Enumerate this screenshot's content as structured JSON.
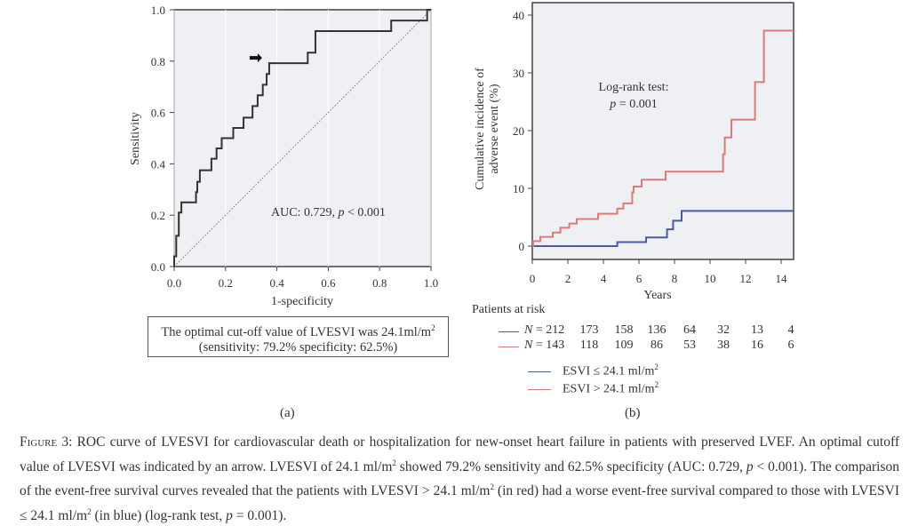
{
  "chart_data": [
    {
      "type": "line",
      "panel_label": "(a)",
      "xlabel": "1-specificity",
      "ylabel": "Sensitivity",
      "xlim": [
        0,
        1
      ],
      "ylim": [
        0,
        1
      ],
      "xticks": [
        "0.0",
        "0.2",
        "0.4",
        "0.6",
        "0.8",
        "1.0"
      ],
      "yticks": [
        "0.0",
        "0.2",
        "0.4",
        "0.6",
        "0.8",
        "1.0"
      ],
      "annotation": "AUC: 0.729, p < 0.001",
      "annotation_parts": {
        "auc": "AUC: 0.729, ",
        "p": "p",
        "rest": " < 0.001"
      },
      "arrow_point": {
        "x": 0.37,
        "y": 0.792
      },
      "reference_line": "diagonal dotted",
      "series": [
        {
          "style": "step",
          "color": "#333333",
          "x": [
            0,
            0,
            0.008,
            0.008,
            0.018,
            0.018,
            0.028,
            0.028,
            0.085,
            0.085,
            0.09,
            0.09,
            0.1,
            0.1,
            0.145,
            0.145,
            0.165,
            0.165,
            0.185,
            0.185,
            0.23,
            0.23,
            0.27,
            0.27,
            0.305,
            0.305,
            0.325,
            0.325,
            0.345,
            0.345,
            0.36,
            0.36,
            0.37,
            0.37,
            0.52,
            0.52,
            0.55,
            0.55,
            0.845,
            0.845,
            0.985,
            0.985,
            1
          ],
          "y": [
            0,
            0.04,
            0.04,
            0.12,
            0.12,
            0.21,
            0.21,
            0.25,
            0.25,
            0.29,
            0.29,
            0.33,
            0.33,
            0.375,
            0.375,
            0.42,
            0.42,
            0.46,
            0.46,
            0.5,
            0.5,
            0.54,
            0.54,
            0.58,
            0.58,
            0.625,
            0.625,
            0.667,
            0.667,
            0.708,
            0.708,
            0.75,
            0.75,
            0.792,
            0.792,
            0.833,
            0.833,
            0.917,
            0.917,
            0.958,
            0.958,
            1,
            1
          ]
        }
      ],
      "cutoff_box": {
        "line1": "The optimal cut-off value of LVESVI was 24.1ml/m",
        "line1_sup": "2",
        "line2": "(sensitivity: 79.2% specificity: 62.5%)"
      }
    },
    {
      "type": "line",
      "panel_label": "(b)",
      "xlabel": "Years",
      "ylabel_line1": "Cumulative incidence of",
      "ylabel_line2": "adverse event (%)",
      "xlim": [
        0,
        14.7
      ],
      "ylim": [
        -2.3,
        42
      ],
      "xticks": [
        "0",
        "2",
        "4",
        "6",
        "8",
        "10",
        "12",
        "14"
      ],
      "yticks": [
        "0",
        "10",
        "20",
        "30",
        "40"
      ],
      "annotation_line1": "Log-rank test:",
      "annotation_line2_p": "p",
      "annotation_line2_rest": " = 0.001",
      "series": [
        {
          "name": "ESVI ≤ 24.1 ml/m",
          "name_sup": "2",
          "color": "#4a5aa8",
          "x": [
            0,
            4.78,
            6.4,
            7.58,
            7.92,
            8.4,
            14.7
          ],
          "y": [
            0,
            0.7,
            1.5,
            2.9,
            4.4,
            6.1,
            6.1
          ]
        },
        {
          "name": "ESVI > 24.1 ml/m",
          "name_sup": "2",
          "color": "#e07a7a",
          "x": [
            0,
            0.05,
            0.45,
            1.15,
            1.58,
            2.08,
            2.5,
            3.7,
            4.78,
            5.12,
            5.62,
            5.7,
            6.15,
            7.5,
            10.73,
            10.83,
            11.2,
            12.53,
            13.03,
            14.7
          ],
          "y": [
            0,
            0.87,
            1.6,
            2.35,
            3.2,
            3.9,
            4.7,
            5.6,
            6.5,
            7.4,
            9.3,
            10.3,
            11.5,
            12.9,
            15.9,
            18.8,
            21.9,
            28.4,
            37.3,
            37.3
          ]
        }
      ],
      "risk_table": {
        "title": "Patients at risk",
        "rows": [
          {
            "color": "#4a5aa8",
            "n_label": "N",
            "first": " = 212",
            "values": [
              "173",
              "158",
              "136",
              "64",
              "32",
              "13",
              "4"
            ]
          },
          {
            "color": "#e07a7a",
            "n_label": "N",
            "first": " = 143",
            "values": [
              "118",
              "109",
              "86",
              "53",
              "38",
              "16",
              "6"
            ]
          }
        ]
      }
    }
  ],
  "caption": {
    "figure_label": "Figure 3:",
    "t1": " ROC curve of LVESVI for cardiovascular death or hospitalization for new-onset heart failure in patients with preserved LVEF. An optimal cutoff value of LVESVI was indicated by an arrow. LVESVI of 24.1 ml/m",
    "s1": "2",
    "t2": " showed 79.2% sensitivity and 62.5% specificity (AUC: 0.729, ",
    "p1": "p",
    "t3": " < 0.001). The comparison of the event-free survival curves revealed that the patients with LVESVI > 24.1 ml/m",
    "s2": "2",
    "t4": " (in red) had a worse event-free survival compared to those with LVESVI ≤ 24.1 ml/m",
    "s3": "2",
    "t5": " (in blue) (log-rank test, ",
    "p2": "p",
    "t6": " = 0.001)."
  }
}
